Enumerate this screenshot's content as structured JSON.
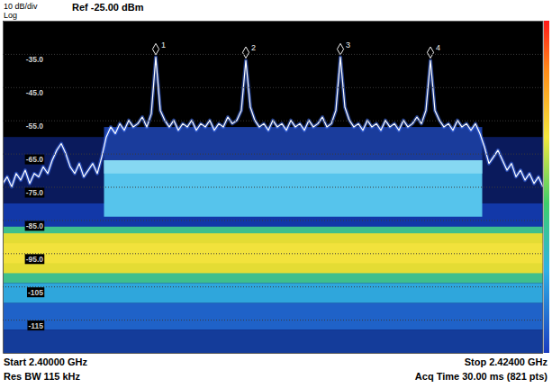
{
  "chart_data": {
    "type": "line",
    "scale_label": "10 dB/div",
    "scale_type": "Log",
    "reference": "Ref -25.00 dBm",
    "start_label": "Start 2.40000 GHz",
    "stop_label": "Stop 2.42400 GHz",
    "rbw_label": "Res BW 115 kHz",
    "acq_label": "Acq Time 30.00 ms (821 pts)",
    "xlim": [
      2.4,
      2.424
    ],
    "ylim": [
      -125,
      -25
    ],
    "yticks": [
      {
        "value": -35,
        "label": "-35.0"
      },
      {
        "value": -45,
        "label": "-45.0"
      },
      {
        "value": -55,
        "label": "-55.0"
      },
      {
        "value": -65,
        "label": "-65.0"
      },
      {
        "value": -75,
        "label": "-75.0"
      },
      {
        "value": -85,
        "label": "-85.0"
      },
      {
        "value": -95,
        "label": "-95.0"
      },
      -105,
      -115
    ],
    "grid": true,
    "tick_labels": "y",
    "color": "#ffffff",
    "x": [
      2.4,
      2.4002,
      2.4004,
      2.4006,
      2.4008,
      2.401,
      2.4012,
      2.4014,
      2.4016,
      2.4018,
      2.402,
      2.4022,
      2.4024,
      2.4026,
      2.4028,
      2.403,
      2.4032,
      2.4034,
      2.4036,
      2.4038,
      2.404,
      2.4042,
      2.4044,
      2.4046,
      2.4048,
      2.405,
      2.4052,
      2.4054,
      2.4056,
      2.4058,
      2.406,
      2.4062,
      2.4064,
      2.4066,
      2.4068,
      2.407,
      2.4072,
      2.4074,
      2.4076,
      2.4078,
      2.408,
      2.4082,
      2.4084,
      2.4086,
      2.4088,
      2.409,
      2.4092,
      2.4094,
      2.4096,
      2.4098,
      2.41,
      2.4102,
      2.4104,
      2.4106,
      2.4108,
      2.411,
      2.4112,
      2.4114,
      2.4116,
      2.4118,
      2.412,
      2.4122,
      2.4124,
      2.4126,
      2.4128,
      2.413,
      2.4132,
      2.4134,
      2.4136,
      2.4138,
      2.414,
      2.4142,
      2.4144,
      2.4146,
      2.4148,
      2.415,
      2.4152,
      2.4154,
      2.4156,
      2.4158,
      2.416,
      2.4162,
      2.4164,
      2.4166,
      2.4168,
      2.417,
      2.4172,
      2.4174,
      2.4176,
      2.4178,
      2.418,
      2.4182,
      2.4184,
      2.4186,
      2.4188,
      2.419,
      2.4192,
      2.4194,
      2.4196,
      2.4198,
      2.42,
      2.4202,
      2.4204,
      2.4206,
      2.4208,
      2.421,
      2.4212,
      2.4214,
      2.4216,
      2.4218,
      2.422,
      2.4222,
      2.4224,
      2.4226,
      2.4228,
      2.423,
      2.4232,
      2.4234,
      2.4236,
      2.4238,
      2.424
    ],
    "values": [
      -74,
      -72,
      -75,
      -71,
      -73,
      -70,
      -74,
      -71,
      -72,
      -69,
      -71,
      -67,
      -64,
      -62,
      -65,
      -69,
      -71,
      -68,
      -72,
      -70,
      -68,
      -71,
      -66,
      -60,
      -57,
      -59,
      -56,
      -58,
      -55,
      -57,
      -56,
      -54,
      -57,
      -53,
      -36,
      -52,
      -55,
      -57,
      -55,
      -58,
      -56,
      -57,
      -55,
      -58,
      -56,
      -57,
      -55,
      -58,
      -56,
      -57,
      -54,
      -56,
      -55,
      -52,
      -37,
      -51,
      -55,
      -57,
      -56,
      -58,
      -55,
      -57,
      -56,
      -58,
      -55,
      -57,
      -56,
      -58,
      -55,
      -57,
      -56,
      -54,
      -57,
      -56,
      -52,
      -36,
      -51,
      -55,
      -57,
      -56,
      -58,
      -55,
      -57,
      -56,
      -58,
      -55,
      -57,
      -56,
      -58,
      -55,
      -57,
      -56,
      -54,
      -56,
      -52,
      -37,
      -52,
      -55,
      -57,
      -56,
      -58,
      -55,
      -57,
      -56,
      -58,
      -56,
      -59,
      -63,
      -68,
      -66,
      -64,
      -67,
      -70,
      -68,
      -72,
      -70,
      -73,
      -71,
      -74,
      -72,
      -75
    ],
    "regions": [
      {
        "x": [
          2.4,
          2.424
        ],
        "y": [
          -125,
          -60
        ],
        "color": "#0a1a5c"
      },
      {
        "x": [
          2.4,
          2.424
        ],
        "y": [
          -88,
          -80
        ],
        "color": "#1238a8"
      },
      {
        "x": [
          2.4045,
          2.4213
        ],
        "y": [
          -67,
          -57
        ],
        "color": "#1a3c9c"
      },
      {
        "x": [
          2.4045,
          2.4213
        ],
        "y": [
          -84,
          -67
        ],
        "color": "#56c4ec"
      },
      {
        "x": [
          2.4045,
          2.4213
        ],
        "y": [
          -71,
          -67
        ],
        "color": "#86d8f2"
      },
      {
        "x": [
          2.4,
          2.424
        ],
        "y": [
          -104,
          -87
        ],
        "color": "#3fbf8c"
      },
      {
        "x": [
          2.4,
          2.424
        ],
        "y": [
          -101,
          -89
        ],
        "color": "#e4dc34"
      },
      {
        "x": [
          2.4,
          2.424
        ],
        "y": [
          -98,
          -92
        ],
        "color": "#f2e23c"
      },
      {
        "x": [
          2.4,
          2.424
        ],
        "y": [
          -110,
          -104
        ],
        "color": "#2fa6dc"
      },
      {
        "x": [
          2.4,
          2.424
        ],
        "y": [
          -118,
          -110
        ],
        "color": "#1f62c8"
      },
      {
        "x": [
          2.4,
          2.424
        ],
        "y": [
          -125,
          -118
        ],
        "color": "#143c9a"
      }
    ],
    "markers": [
      {
        "label": "1",
        "x": 2.4068,
        "y": -36
      },
      {
        "label": "2",
        "x": 2.4108,
        "y": -37
      },
      {
        "label": "3",
        "x": 2.415,
        "y": -36
      },
      {
        "label": "4",
        "x": 2.419,
        "y": -37
      }
    ]
  }
}
